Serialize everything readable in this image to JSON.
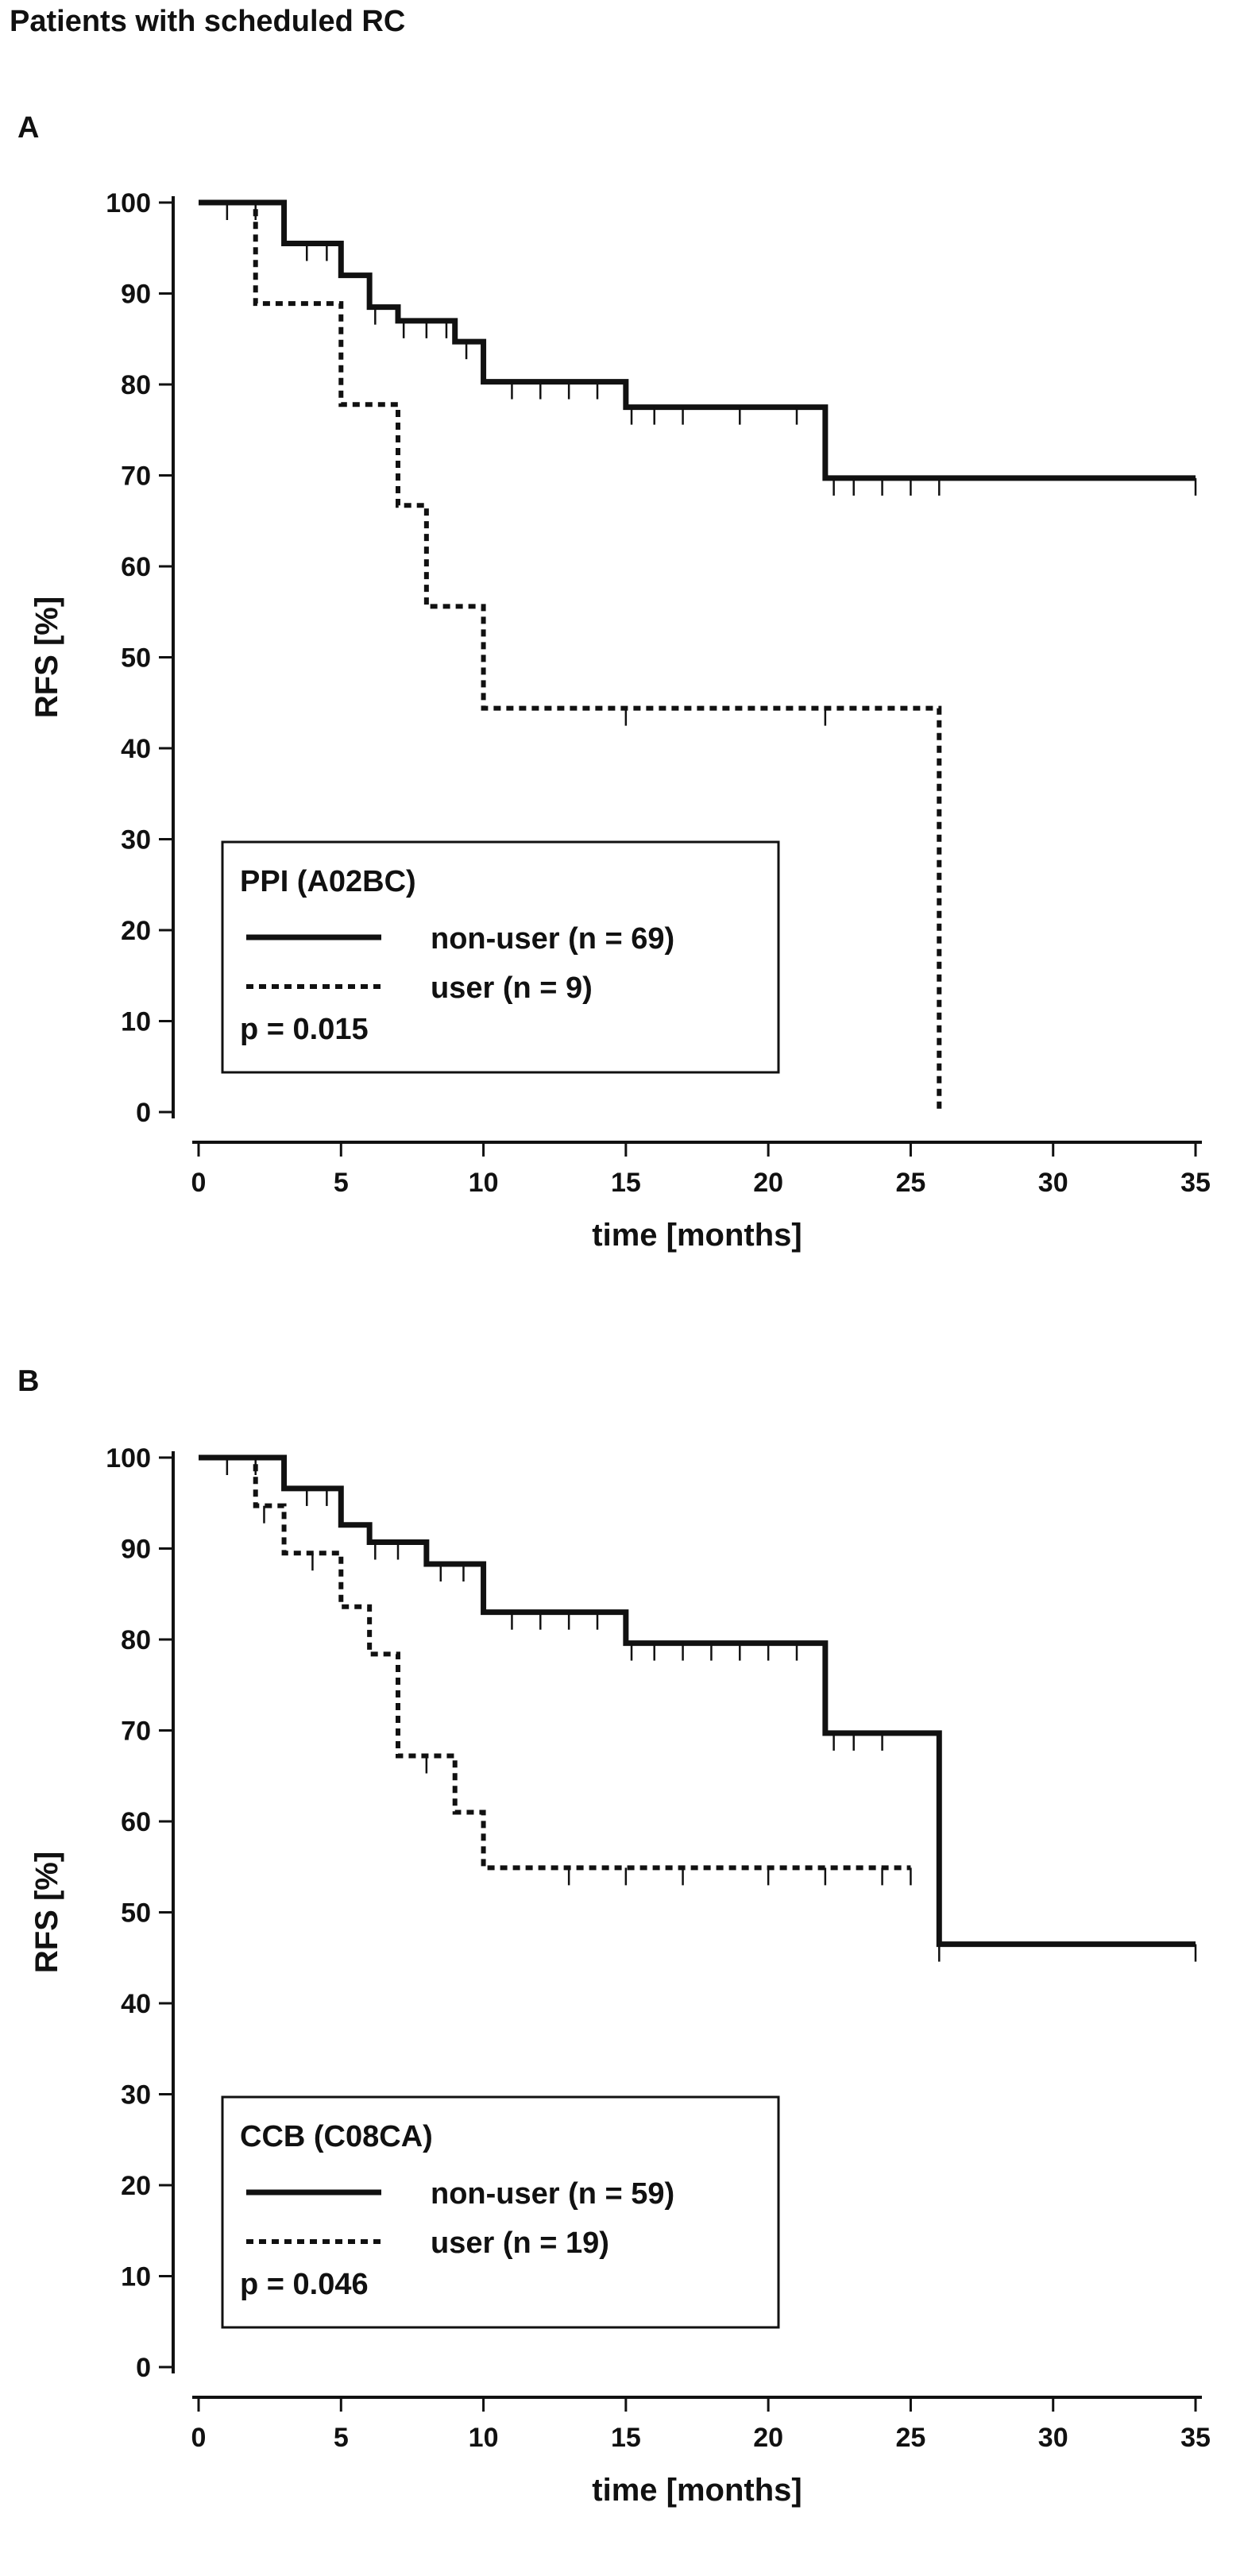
{
  "figure_title": "Patients with scheduled RC",
  "chart_data": [
    {
      "type": "line",
      "panel_label": "A",
      "title": "",
      "xlabel": "time [months]",
      "ylabel": "RFS [%]",
      "xlim": [
        0,
        35
      ],
      "ylim": [
        0,
        100
      ],
      "x_ticks": [
        "0",
        "5",
        "10",
        "15",
        "20",
        "25",
        "30",
        "35"
      ],
      "y_ticks": [
        "0",
        "10",
        "20",
        "30",
        "40",
        "50",
        "60",
        "70",
        "80",
        "90",
        "100"
      ],
      "grid": false,
      "legend_position": "bottom-left",
      "legend_title": "PPI (A02BC)",
      "p_value": "p = 0.015",
      "series": [
        {
          "name": "non-user (n = 69)",
          "style": "solid",
          "x": [
            0,
            3,
            5,
            6,
            7,
            9,
            10,
            15,
            22,
            35
          ],
          "y": [
            100,
            95.5,
            92,
            88.5,
            87,
            84.7,
            80.3,
            77.5,
            69.7,
            69.7
          ],
          "censored_x": [
            1,
            2,
            3.8,
            4.5,
            6.2,
            7.2,
            8,
            8.7,
            9.4,
            11,
            12,
            13,
            14,
            15.2,
            16,
            17,
            19,
            21,
            22.3,
            23,
            24,
            25,
            26,
            35
          ]
        },
        {
          "name": "user (n = 9)",
          "style": "dashed",
          "x": [
            0,
            2,
            5,
            7,
            8,
            10,
            26
          ],
          "y": [
            100,
            88.9,
            77.8,
            66.7,
            55.6,
            44.4,
            0
          ],
          "censored_x": [
            15,
            22
          ]
        }
      ]
    },
    {
      "type": "line",
      "panel_label": "B",
      "title": "",
      "xlabel": "time [months]",
      "ylabel": "RFS [%]",
      "xlim": [
        0,
        35
      ],
      "ylim": [
        0,
        100
      ],
      "x_ticks": [
        "0",
        "5",
        "10",
        "15",
        "20",
        "25",
        "30",
        "35"
      ],
      "y_ticks": [
        "0",
        "10",
        "20",
        "30",
        "40",
        "50",
        "60",
        "70",
        "80",
        "90",
        "100"
      ],
      "grid": false,
      "legend_position": "bottom-left",
      "legend_title": "CCB (C08CA)",
      "p_value": "p = 0.046",
      "series": [
        {
          "name": "non-user (n = 59)",
          "style": "solid",
          "x": [
            0,
            3,
            5,
            6,
            8,
            10,
            15,
            22,
            26,
            35
          ],
          "y": [
            100,
            96.6,
            92.6,
            90.7,
            88.3,
            83,
            79.6,
            69.7,
            46.5,
            46.5
          ],
          "censored_x": [
            1,
            2,
            3.8,
            4.5,
            6.2,
            7,
            8.5,
            9.3,
            11,
            12,
            13,
            14,
            15.2,
            16,
            17,
            18,
            19,
            20,
            21,
            22.3,
            23,
            24,
            26,
            35
          ]
        },
        {
          "name": "user (n = 19)",
          "style": "dashed",
          "x": [
            0,
            2,
            3,
            5,
            6,
            7,
            9,
            10,
            25
          ],
          "y": [
            100,
            94.7,
            89.5,
            83.6,
            78.4,
            67.2,
            61,
            54.9,
            54.9
          ],
          "censored_x": [
            2.3,
            4,
            8,
            13,
            15,
            17,
            20,
            22,
            24,
            25
          ]
        }
      ]
    }
  ]
}
